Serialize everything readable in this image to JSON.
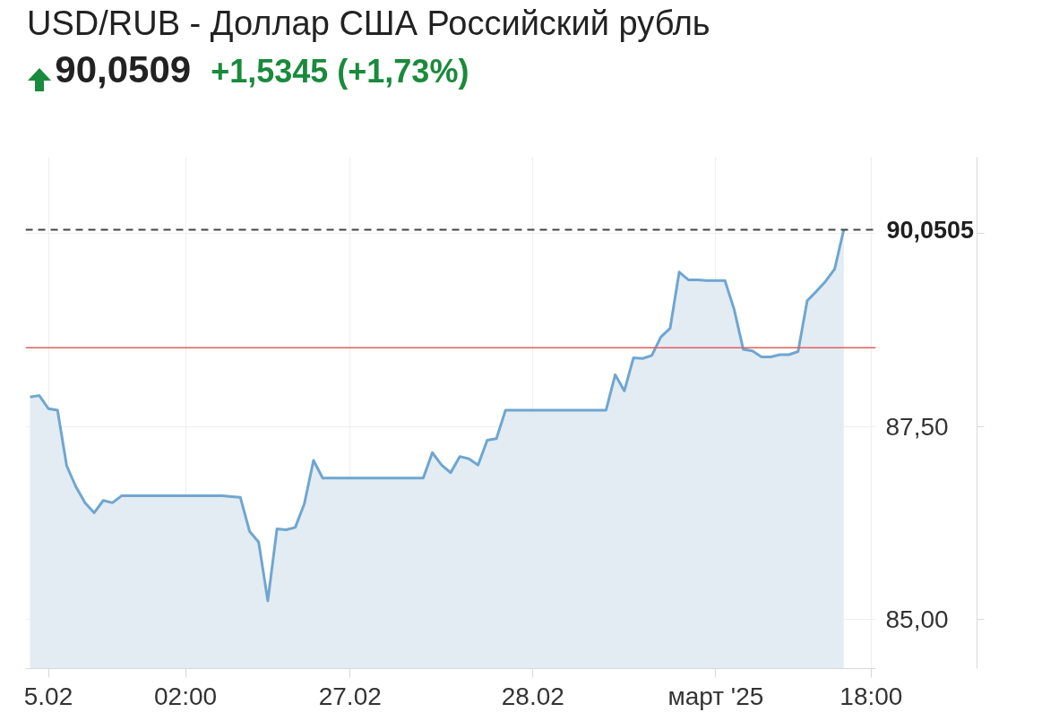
{
  "chart_data": {
    "type": "area",
    "title": "USD/RUB - Доллар США Российский рубль",
    "subtitle": "90,0509",
    "annotations": [
      "+1,5345 (+1,73%)"
    ],
    "categories": [
      null,
      null,
      "5.02",
      null,
      null,
      null,
      null,
      null,
      null,
      null,
      null,
      null,
      null,
      null,
      null,
      null,
      null,
      "02:00",
      null,
      null,
      null,
      null,
      null,
      null,
      null,
      null,
      null,
      null,
      null,
      null,
      null,
      null,
      null,
      null,
      null,
      "27.02",
      null,
      null,
      null,
      null,
      null,
      null,
      null,
      null,
      null,
      null,
      null,
      null,
      null,
      null,
      null,
      null,
      null,
      null,
      null,
      "28.02",
      null,
      null,
      null,
      null,
      null,
      null,
      null,
      null,
      null,
      null,
      null,
      null,
      null,
      null,
      null,
      null,
      null,
      null,
      null,
      "март '25",
      null,
      null,
      null,
      null,
      null,
      null,
      null,
      null,
      null,
      null,
      null,
      null,
      null,
      null,
      null,
      null,
      "18:00"
    ],
    "series": [
      {
        "color": "#6fa6d0",
        "values": [
          87.88,
          87.9,
          87.73,
          87.71,
          86.99,
          86.72,
          86.51,
          86.38,
          86.54,
          86.51,
          86.6,
          86.6,
          86.6,
          86.6,
          86.6,
          86.6,
          86.6,
          86.6,
          86.6,
          86.6,
          86.6,
          86.6,
          86.59,
          86.58,
          86.14,
          86.0,
          85.24,
          86.17,
          86.16,
          86.19,
          86.5,
          87.06,
          86.83,
          86.83,
          86.83,
          86.83,
          86.83,
          86.83,
          86.83,
          86.83,
          86.83,
          86.83,
          86.83,
          86.83,
          87.16,
          87.0,
          86.9,
          87.11,
          87.08,
          87.0,
          87.32,
          87.34,
          87.71,
          87.71,
          87.71,
          87.71,
          87.71,
          87.71,
          87.71,
          87.71,
          87.71,
          87.71,
          87.71,
          87.71,
          88.17,
          87.96,
          88.39,
          88.38,
          88.42,
          88.66,
          88.77,
          89.5,
          89.4,
          89.4,
          89.39,
          89.39,
          89.39,
          89.02,
          88.5,
          88.48,
          88.4,
          88.4,
          88.43,
          88.43,
          88.47,
          89.13,
          89.25,
          89.38,
          89.54,
          90.05,
          null,
          null,
          null
        ]
      }
    ],
    "ylim": [
      84.36,
      90.99
    ],
    "yticks": [
      {
        "value": 85,
        "label": "85,00"
      },
      {
        "value": 87.5,
        "label": "87,50"
      },
      {
        "value": 90,
        "label": null
      }
    ],
    "ref_lines": [
      {
        "axis": "y",
        "value": 90.0505,
        "label": "90,0505",
        "color": "#444444",
        "line_style": "dashed"
      },
      {
        "axis": "y",
        "value": 88.52,
        "color": "#e06060",
        "line_style": "solid"
      }
    ],
    "grid": true,
    "marker": "none",
    "line_style": "solid"
  }
}
